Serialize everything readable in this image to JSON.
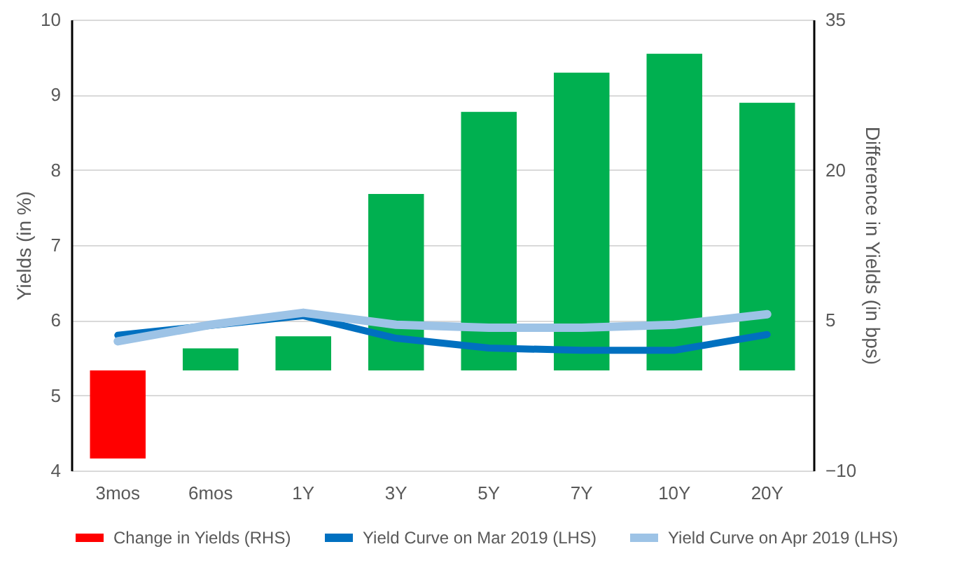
{
  "chart_data": {
    "type": "bar",
    "categories": [
      "3mos",
      "6mos",
      "1Y",
      "3Y",
      "5Y",
      "7Y",
      "10Y",
      "20Y"
    ],
    "ylabel": "Yields (in %)",
    "y2label": "Difference in Yields (in bps)",
    "ylim": [
      4,
      10
    ],
    "yticks": [
      4,
      5,
      6,
      7,
      8,
      9,
      10
    ],
    "y2lim": [
      -10,
      35
    ],
    "y2ticks": [
      -10,
      5,
      20,
      35
    ],
    "grid": "y",
    "legend": "bottom",
    "marker": "none",
    "line_style": "solid",
    "series": [
      {
        "name": "Change in Yields (RHS)",
        "axis": "y2",
        "color": "#ff0000",
        "colors": [
          "#ff0000",
          "#00b050",
          "#00b050",
          "#00b050",
          "#00b050",
          "#00b050",
          "#00b050",
          "#00b050"
        ],
        "values": [
          -8.8,
          2.2,
          3.4,
          17.6,
          25.8,
          29.7,
          31.6,
          26.7
        ]
      },
      {
        "name": "Yield Curve on Mar 2019 (LHS)",
        "type": "line",
        "color": "#0070c0",
        "values": [
          5.8,
          5.93,
          6.06,
          5.76,
          5.63,
          5.6,
          5.6,
          5.81
        ]
      },
      {
        "name": "Yield Curve on Apr 2019 (LHS)",
        "type": "line",
        "color": "#9dc3e6",
        "values": [
          5.72,
          5.94,
          6.1,
          5.94,
          5.9,
          5.9,
          5.94,
          6.08
        ]
      }
    ]
  }
}
